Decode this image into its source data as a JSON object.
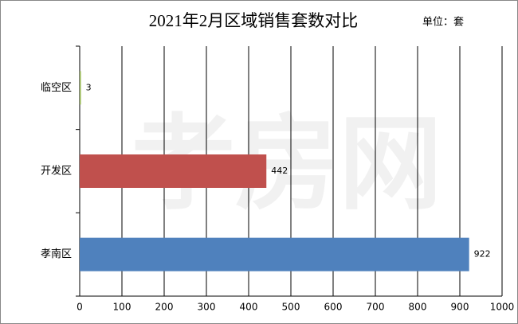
{
  "chart_data": {
    "type": "hbar",
    "title": "2021年2月区域销售套数对比",
    "unit": "单位：套",
    "watermark": "孝房网",
    "categories": [
      "临空区",
      "开发区",
      "孝南区"
    ],
    "values": [
      3,
      442,
      922
    ],
    "colors": [
      "#9bbb59",
      "#c0504d",
      "#4f81bd"
    ],
    "xlim": [
      0,
      1000
    ],
    "xticks": [
      0,
      100,
      200,
      300,
      400,
      500,
      600,
      700,
      800,
      900,
      1000
    ],
    "grid": true
  }
}
